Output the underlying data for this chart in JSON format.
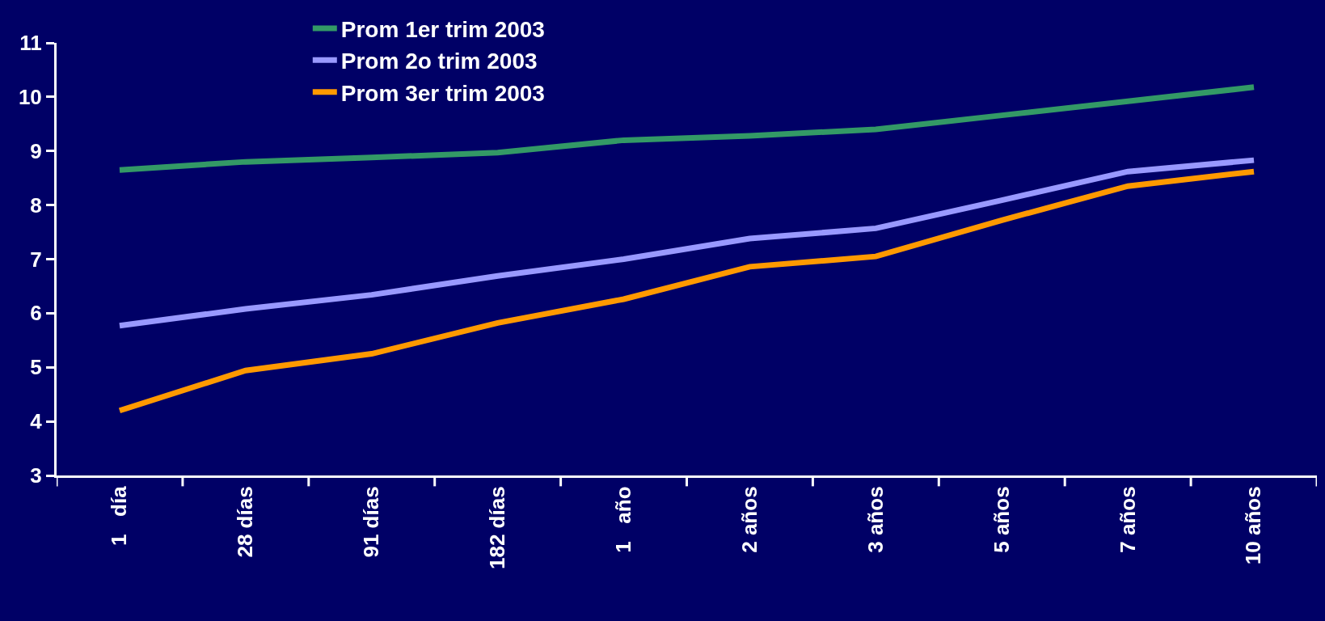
{
  "chart_data": {
    "type": "line",
    "categories": [
      "1   día",
      "28 días",
      "91 días",
      "182 días",
      "1   año",
      "2 años",
      "3 años",
      "5 años",
      "7 años",
      "10 años"
    ],
    "series": [
      {
        "name": "Prom 1er trim 2003",
        "color": "#339966",
        "values": [
          8.65,
          8.8,
          8.88,
          8.97,
          9.2,
          9.28,
          9.4,
          9.66,
          9.92,
          10.18
        ]
      },
      {
        "name": "Prom 2o trim 2003",
        "color": "#9999ff",
        "values": [
          5.77,
          6.08,
          6.34,
          6.69,
          7.0,
          7.38,
          7.57,
          8.09,
          8.62,
          8.83
        ]
      },
      {
        "name": "Prom 3er trim 2003",
        "color": "#ff9900",
        "values": [
          4.2,
          4.94,
          5.25,
          5.82,
          6.26,
          6.86,
          7.05,
          7.72,
          8.35,
          8.62
        ]
      }
    ],
    "ylim": [
      3,
      11
    ],
    "yticks": [
      3,
      4,
      5,
      6,
      7,
      8,
      9,
      10,
      11
    ],
    "grid": false,
    "legend": "top left",
    "marker": "none",
    "line_style": "solid"
  }
}
